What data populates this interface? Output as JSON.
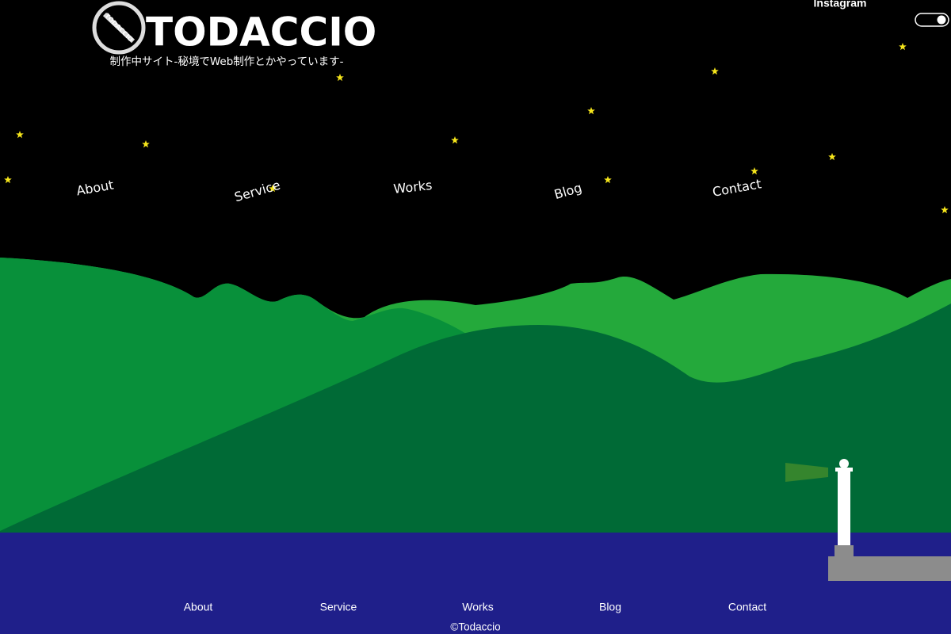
{
  "header": {
    "logo_text": "TODACCIO",
    "title": "TODACCIO",
    "subtitle": "制作中サイト-秘境でWeb制作とかやっています-",
    "instagram": "Instagram"
  },
  "nav": [
    "About",
    "Service",
    "Works",
    "Blog",
    "Contact"
  ],
  "footer": {
    "nav": [
      "About",
      "Service",
      "Works",
      "Blog",
      "Contact"
    ],
    "copyright": "©Todaccio"
  }
}
